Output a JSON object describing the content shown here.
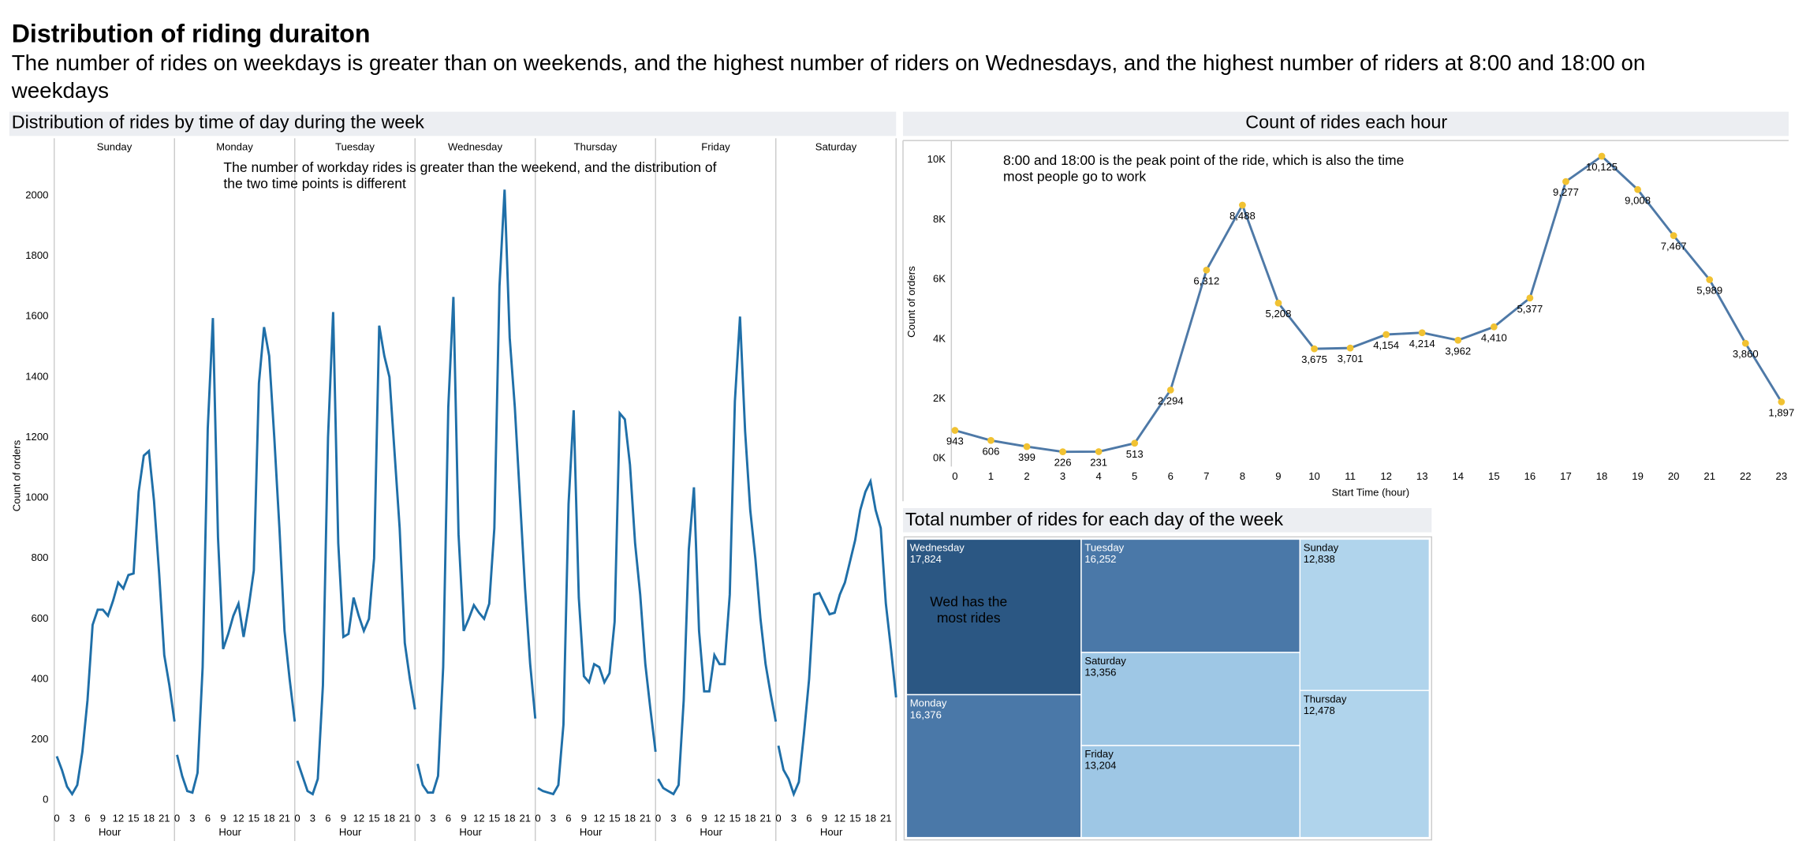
{
  "dashboard": {
    "title": "Distribution of riding duraiton",
    "subtitle": [
      "The number of rides on weekdays is greater than on weekends, and the highest number of riders on Wednesdays, and the highest number of riders at 8:00 and 18:00 on",
      "weekdays"
    ]
  },
  "chart_data": [
    {
      "type": "line",
      "title": "Distribution of rides by time of day during the week",
      "y_label": "Count of orders",
      "x_label": "Hour",
      "annotation": [
        "The number of workday rides is greater than the weekend, and the distribution of",
        "the two time points is different"
      ],
      "x": [
        0,
        1,
        2,
        3,
        4,
        5,
        6,
        7,
        8,
        9,
        10,
        11,
        12,
        13,
        14,
        15,
        16,
        17,
        18,
        19,
        20,
        21,
        22,
        23
      ],
      "xlim": [
        -0.5,
        23
      ],
      "xticks": [
        0,
        3,
        6,
        9,
        12,
        15,
        18,
        21
      ],
      "ylim": [
        -40,
        2190
      ],
      "yticks": [
        0,
        200,
        400,
        600,
        800,
        1000,
        1200,
        1400,
        1600,
        1800,
        2000
      ],
      "series": [
        {
          "name": "Sunday",
          "color": "#1f6fa8",
          "values": [
            145,
            100,
            45,
            20,
            50,
            160,
            330,
            580,
            630,
            630,
            610,
            660,
            720,
            700,
            745,
            750,
            1020,
            1140,
            1155,
            990,
            750,
            480,
            380,
            260
          ]
        },
        {
          "name": "Monday",
          "color": "#1f6fa8",
          "values": [
            150,
            80,
            30,
            25,
            90,
            440,
            1230,
            1595,
            870,
            500,
            550,
            610,
            650,
            540,
            640,
            760,
            1380,
            1565,
            1470,
            1200,
            900,
            560,
            400,
            260
          ]
        },
        {
          "name": "Tuesday",
          "color": "#1f6fa8",
          "values": [
            130,
            80,
            30,
            20,
            70,
            380,
            1200,
            1615,
            850,
            540,
            550,
            670,
            610,
            560,
            600,
            800,
            1570,
            1470,
            1400,
            1150,
            900,
            520,
            400,
            300
          ]
        },
        {
          "name": "Wednesday",
          "color": "#1f6fa8",
          "values": [
            120,
            50,
            25,
            25,
            80,
            440,
            1300,
            1665,
            880,
            560,
            600,
            645,
            620,
            600,
            650,
            900,
            1700,
            2020,
            1530,
            1300,
            1000,
            700,
            450,
            270
          ]
        },
        {
          "name": "Thursday",
          "color": "#1f6fa8",
          "values": [
            40,
            30,
            25,
            20,
            50,
            250,
            980,
            1290,
            670,
            410,
            390,
            450,
            440,
            390,
            420,
            590,
            1280,
            1260,
            1110,
            850,
            680,
            450,
            300,
            160
          ]
        },
        {
          "name": "Friday",
          "color": "#1f6fa8",
          "values": [
            70,
            40,
            30,
            20,
            50,
            330,
            830,
            1035,
            560,
            360,
            360,
            480,
            450,
            450,
            680,
            1320,
            1600,
            1220,
            960,
            800,
            600,
            450,
            350,
            260
          ]
        },
        {
          "name": "Saturday",
          "color": "#1f6fa8",
          "values": [
            180,
            100,
            70,
            20,
            60,
            220,
            400,
            680,
            685,
            650,
            615,
            620,
            680,
            720,
            790,
            860,
            960,
            1020,
            1055,
            960,
            900,
            650,
            500,
            340
          ]
        }
      ]
    },
    {
      "type": "line",
      "title": "Count of rides each hour",
      "y_label": "Count of orders",
      "x_label": "Start Time (hour)",
      "annotation": [
        "8:00 and 18:00 is the peak point of the ride, which is also the time",
        "most people go to work"
      ],
      "x": [
        0,
        1,
        2,
        3,
        4,
        5,
        6,
        7,
        8,
        9,
        10,
        11,
        12,
        13,
        14,
        15,
        16,
        17,
        18,
        19,
        20,
        21,
        22,
        23
      ],
      "values": [
        943,
        606,
        399,
        226,
        231,
        513,
        2294,
        6312,
        8488,
        5208,
        3675,
        3701,
        4154,
        4214,
        3962,
        4410,
        5377,
        9277,
        10125,
        9008,
        7467,
        5989,
        3860,
        1897
      ],
      "value_labels": [
        "943",
        "606",
        "399",
        "226",
        "231",
        "513",
        "2,294",
        "6,312",
        "8,488",
        "5,208",
        "3,675",
        "3,701",
        "4,154",
        "4,214",
        "3,962",
        "4,410",
        "5,377",
        "9,277",
        "10,125",
        "9,008",
        "7,467",
        "5,989",
        "3,860",
        "1,897"
      ],
      "color": "#4e79a7",
      "marker_color": "#f1c232",
      "xlim": [
        -0.1,
        23.2
      ],
      "xticks": [
        0,
        1,
        2,
        3,
        4,
        5,
        6,
        7,
        8,
        9,
        10,
        11,
        12,
        13,
        14,
        15,
        16,
        17,
        18,
        19,
        20,
        21,
        22,
        23
      ],
      "ylim": [
        -270,
        10650
      ],
      "yticks": [
        {
          "value": 0,
          "label": "0K"
        },
        {
          "value": 2000,
          "label": "2K"
        },
        {
          "value": 4000,
          "label": "4K"
        },
        {
          "value": 6000,
          "label": "6K"
        },
        {
          "value": 8000,
          "label": "8K"
        },
        {
          "value": 10000,
          "label": "10K"
        }
      ]
    },
    {
      "type": "treemap",
      "title": "Total number of rides for each day of the week",
      "annotation": [
        "Wed has the",
        "most rides"
      ],
      "categories": [
        "Wednesday",
        "Monday",
        "Tuesday",
        "Saturday",
        "Friday",
        "Sunday",
        "Thursday"
      ],
      "values": [
        17824,
        16376,
        16252,
        13356,
        13204,
        12838,
        12478
      ],
      "value_labels": [
        "17,824",
        "16,376",
        "16,252",
        "13,356",
        "13,204",
        "12,838",
        "12,478"
      ],
      "colors": [
        "#2b5783",
        "#4a78a8",
        "#4a78a8",
        "#9ec7e5",
        "#9ec7e5",
        "#b0d4ec",
        "#b0d4ec"
      ]
    }
  ]
}
